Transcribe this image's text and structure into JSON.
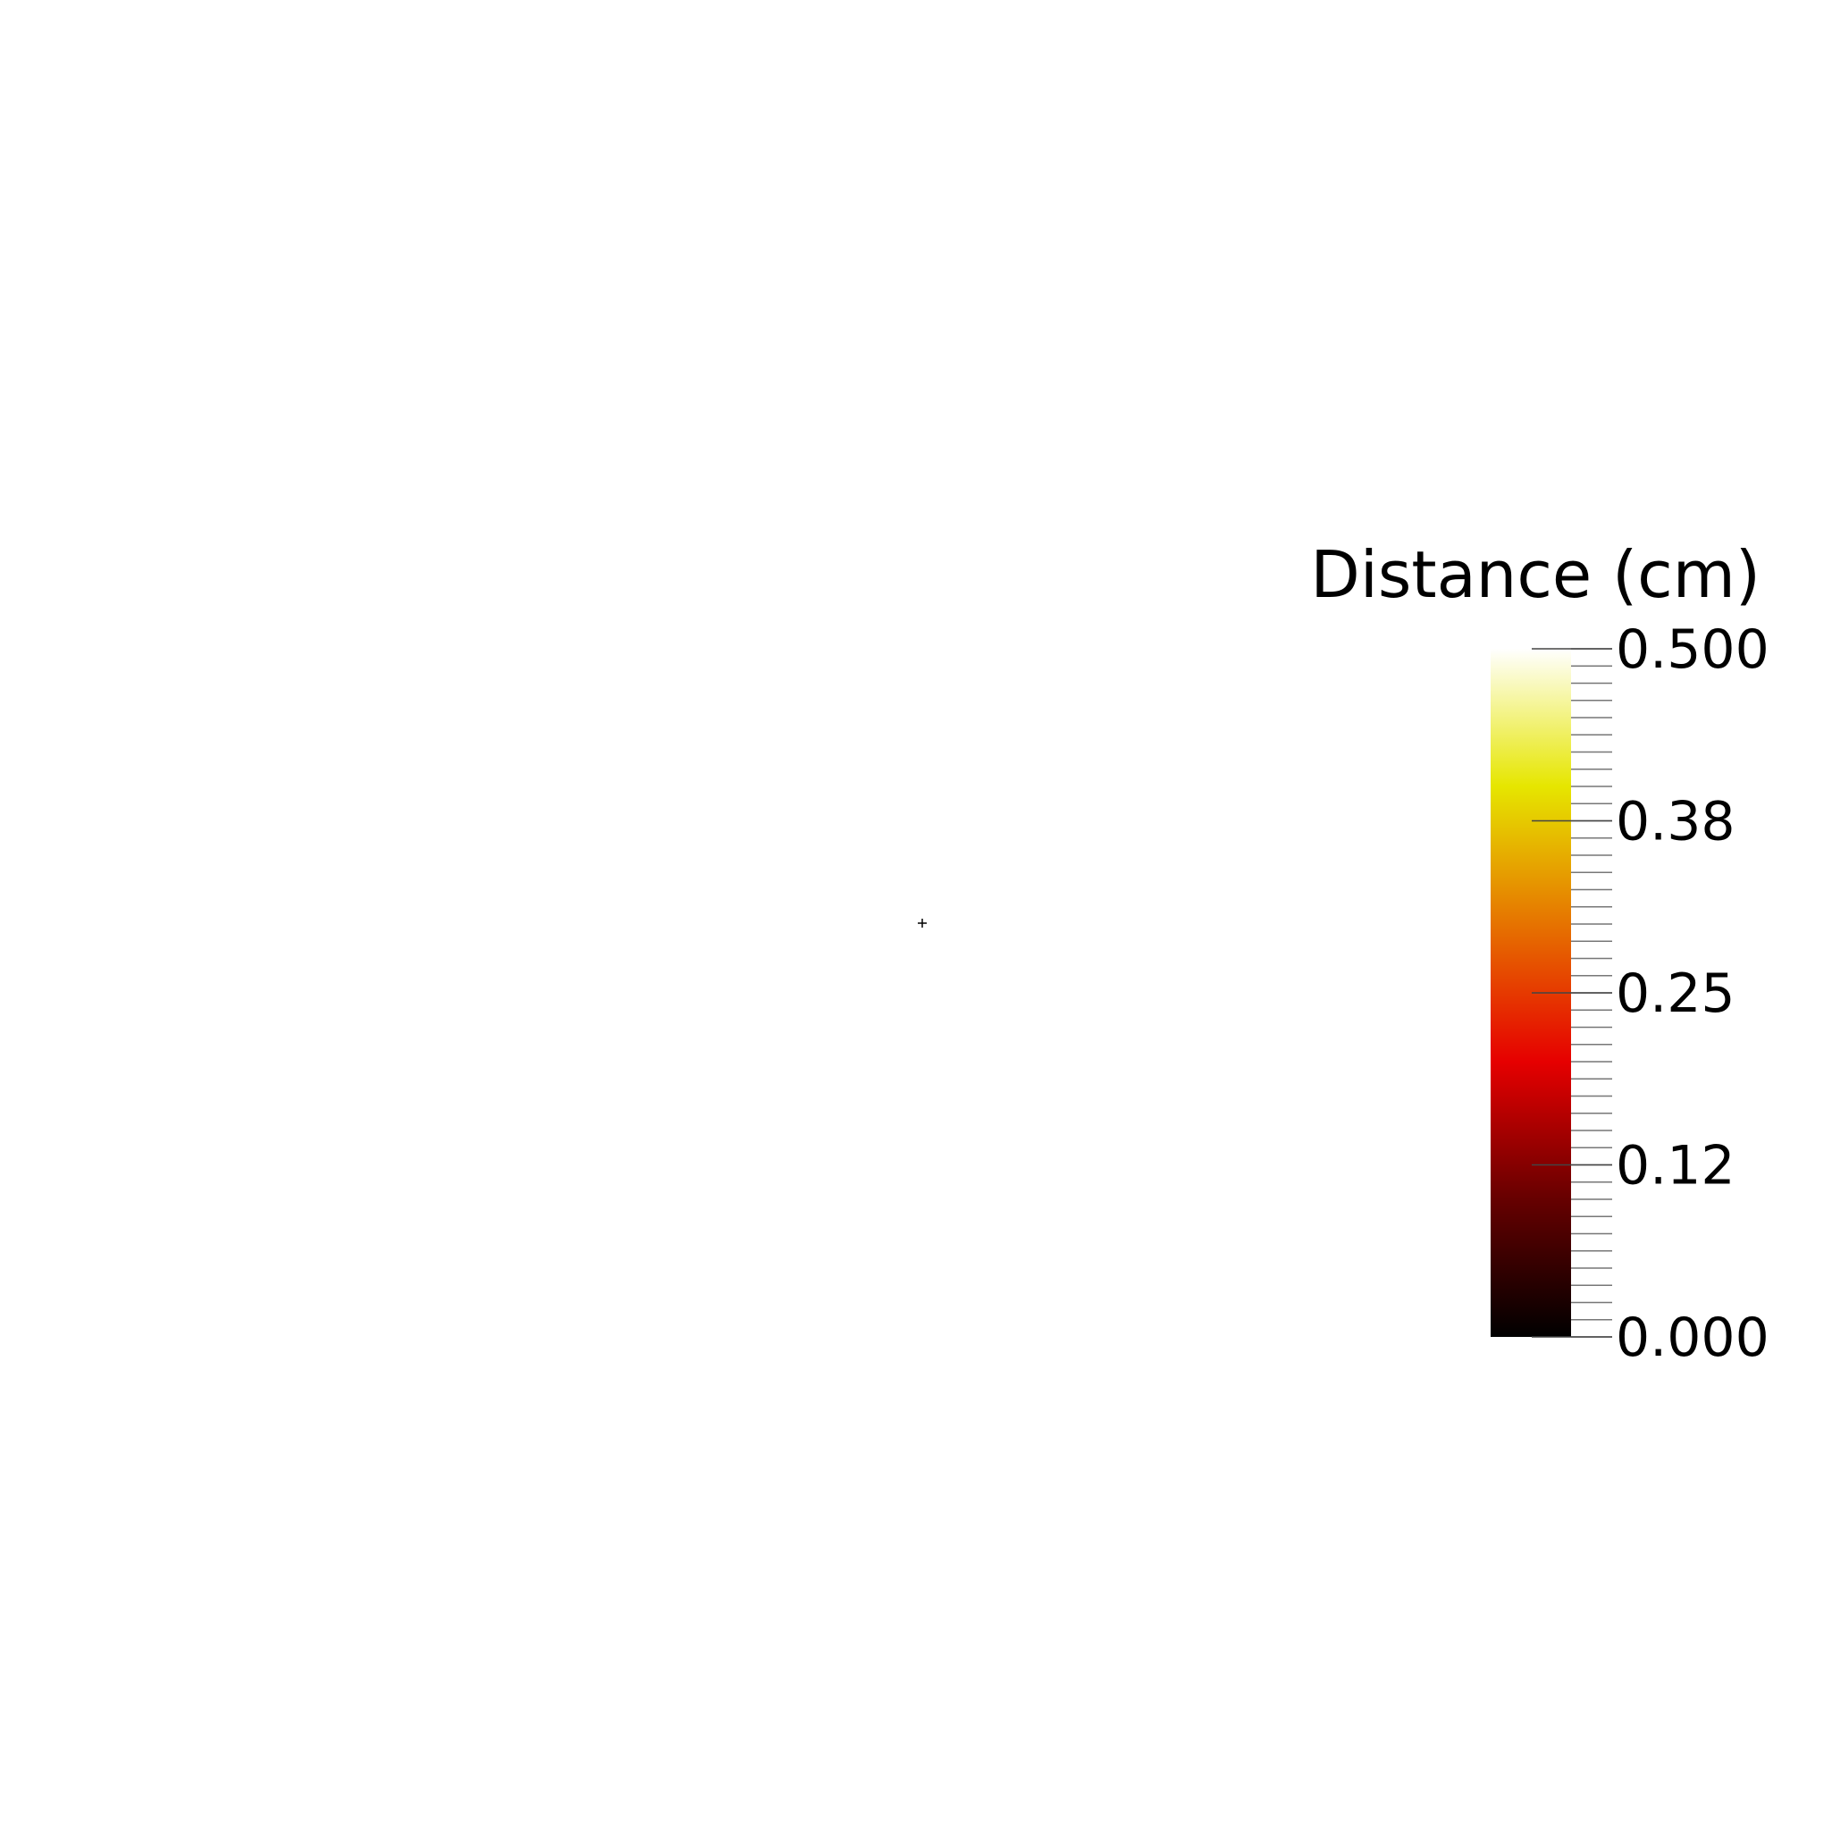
{
  "view": {
    "background": "#ffffff",
    "center_marker": "crosshair-icon"
  },
  "colorbar": {
    "title": "Distance (cm)",
    "range": [
      0.0,
      0.5
    ],
    "colormap": "black-body",
    "colormap_stops": [
      {
        "value": 0.0,
        "color": "#000000"
      },
      {
        "value": 0.1,
        "color": "#660000"
      },
      {
        "value": 0.2,
        "color": "#e60000"
      },
      {
        "value": 0.3,
        "color": "#e67300"
      },
      {
        "value": 0.4,
        "color": "#e6e600"
      },
      {
        "value": 0.5,
        "color": "#ffffff"
      }
    ],
    "tick_labels": [
      {
        "value": 0.5,
        "text": "0.500"
      },
      {
        "value": 0.375,
        "text": "0.38"
      },
      {
        "value": 0.25,
        "text": "0.25"
      },
      {
        "value": 0.125,
        "text": "0.12"
      },
      {
        "value": 0.0,
        "text": "0.000"
      }
    ],
    "minor_tick_count": 41
  },
  "chart_data": {
    "type": "heatmap",
    "title": "Distance (cm)",
    "colorbar_range": [
      0.0,
      0.5
    ],
    "colorbar_ticks": [
      0.0,
      0.12,
      0.25,
      0.38,
      0.5
    ],
    "colorbar_tick_labels": [
      "0.000",
      "0.12",
      "0.25",
      "0.38",
      "0.500"
    ],
    "colormap": "black-body"
  }
}
